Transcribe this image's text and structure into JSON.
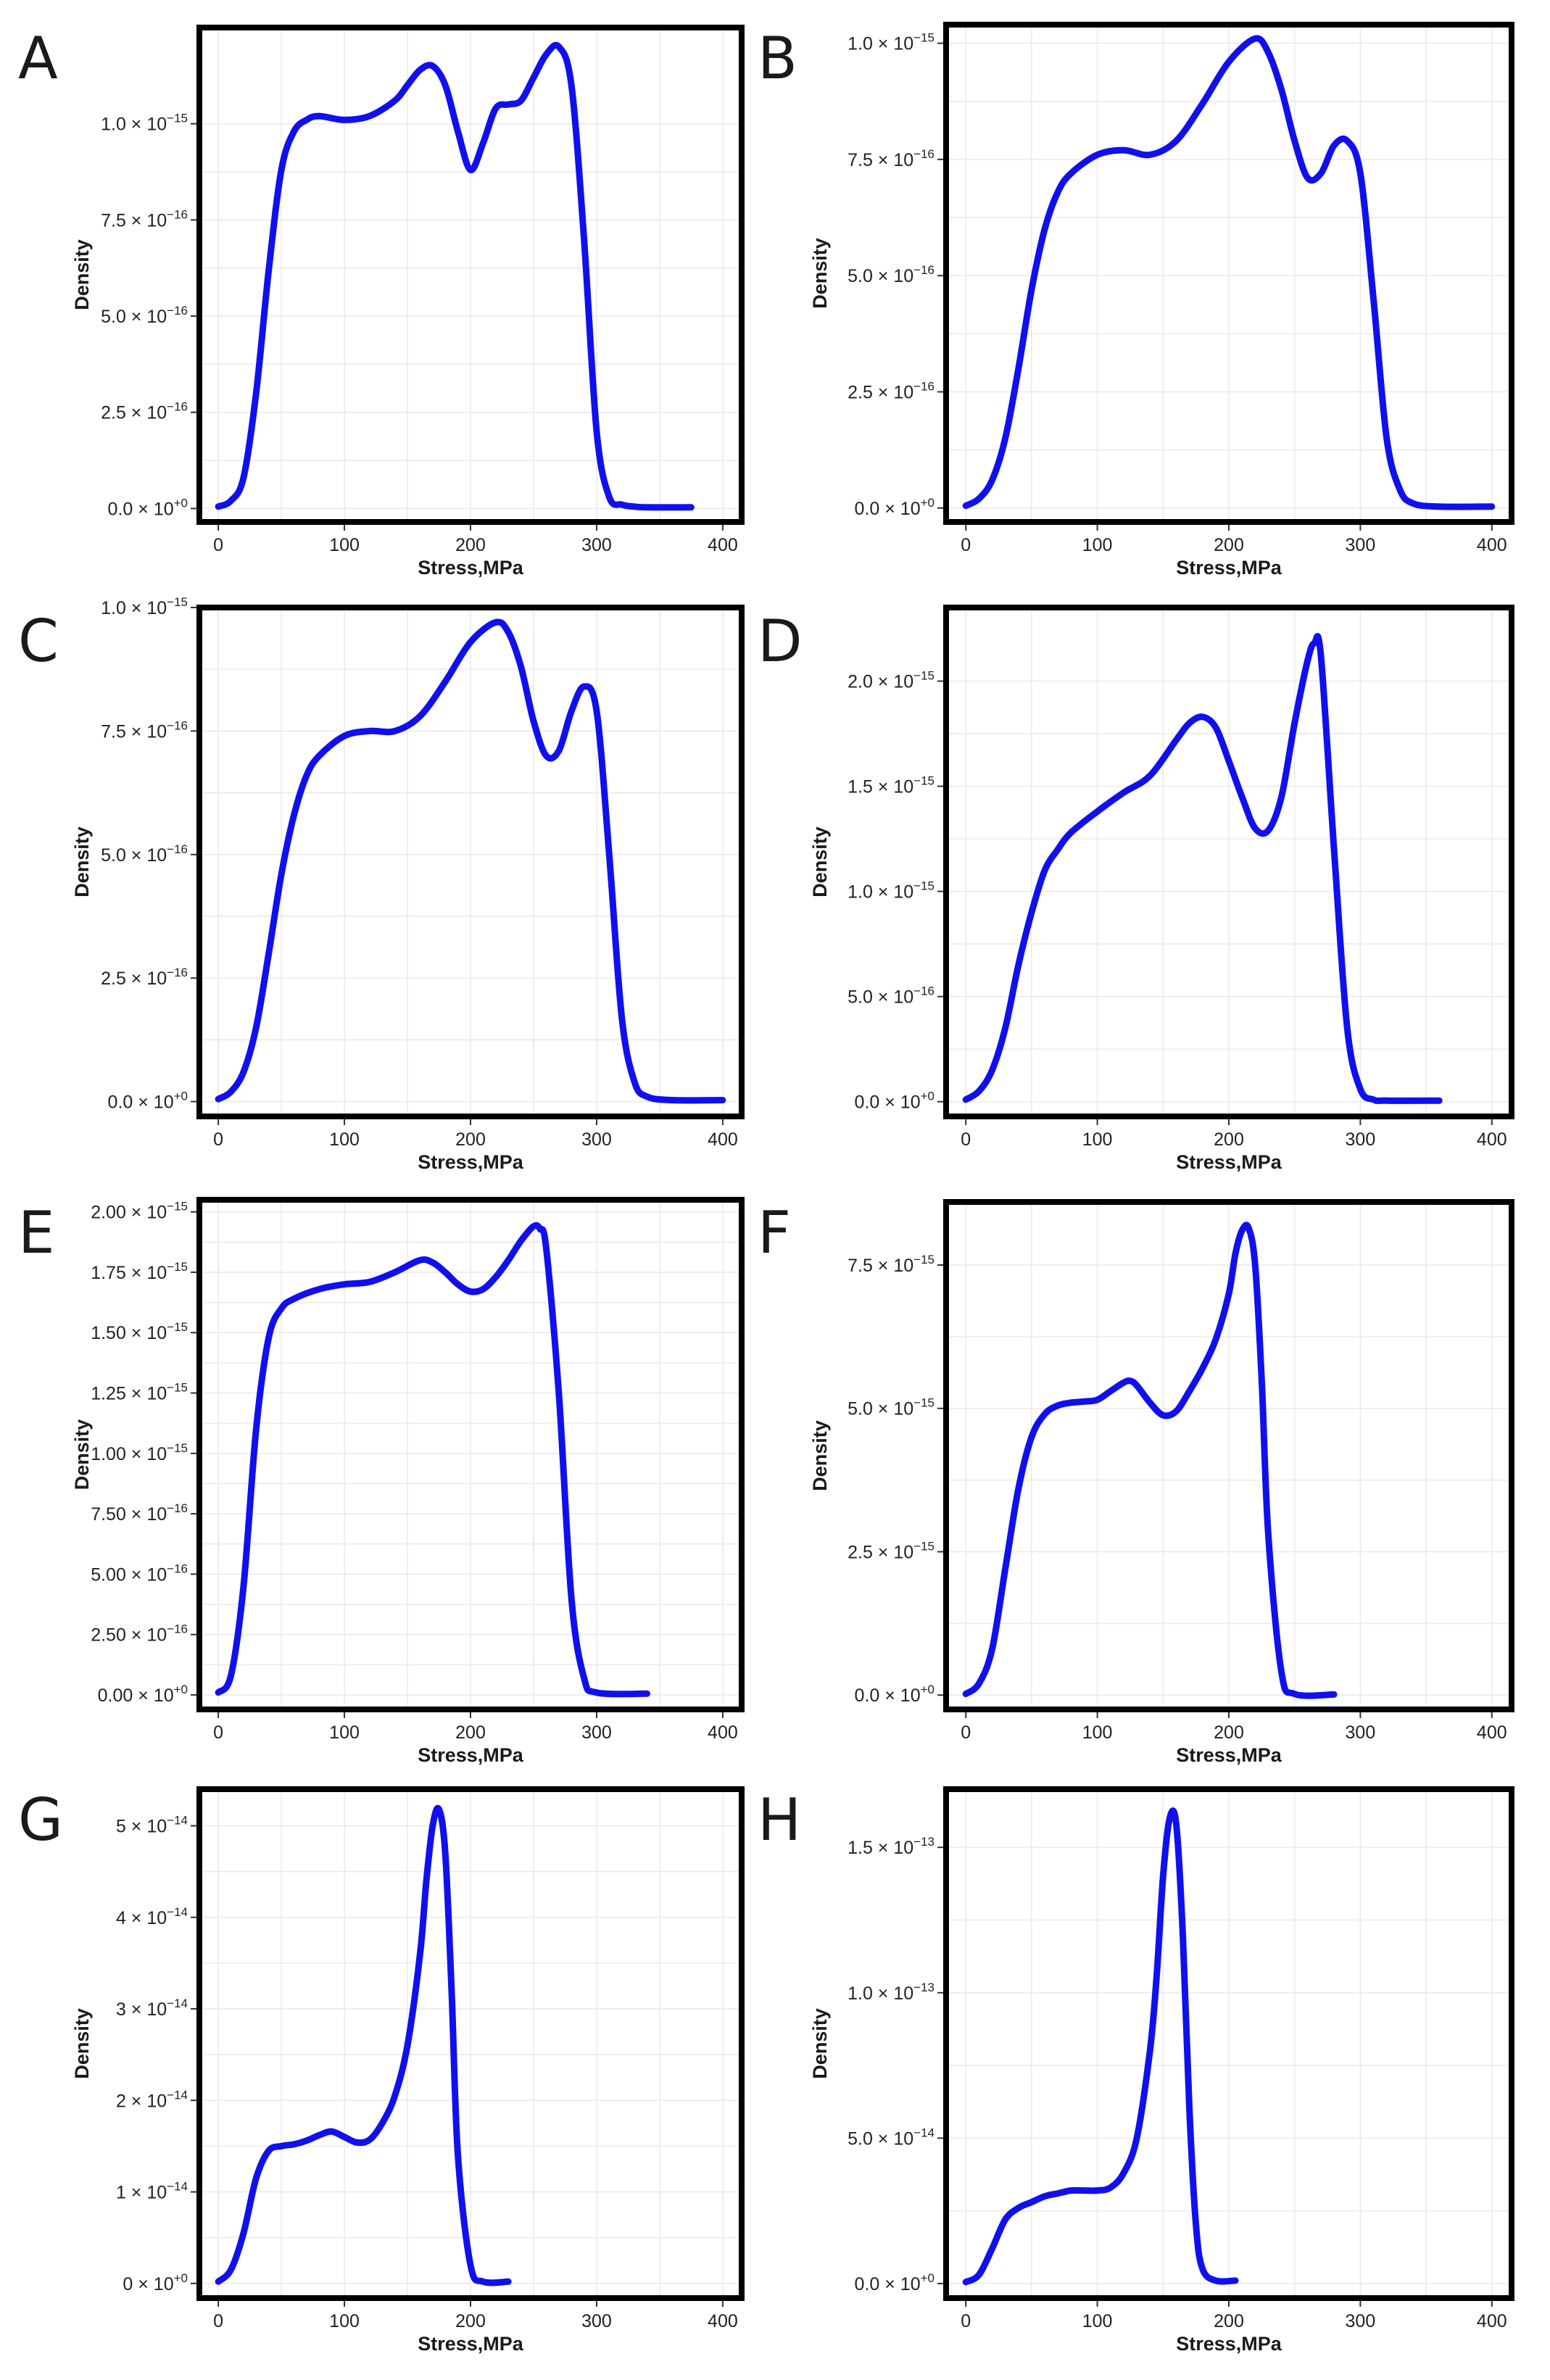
{
  "figure": {
    "line_color": "#1010ee",
    "panel_count": 8
  },
  "chart_data": [
    {
      "panel": "A",
      "type": "line",
      "xlabel": "Stress,MPa",
      "ylabel": "Density",
      "xlim": [
        -15,
        415
      ],
      "ylim": [
        -0.035,
        1.25
      ],
      "y_exp": -15,
      "xticks": [
        0,
        100,
        200,
        300,
        400
      ],
      "xtick_labels": [
        "0",
        "100",
        "200",
        "300",
        "400"
      ],
      "yticks": [
        0,
        0.25,
        0.5,
        0.75,
        1.0
      ],
      "ytick_labels": [
        {
          "mantissa": "0.0",
          "exponent": "+0"
        },
        {
          "mantissa": "2.5",
          "exponent": "−16"
        },
        {
          "mantissa": "5.0",
          "exponent": "−16"
        },
        {
          "mantissa": "7.5",
          "exponent": "−16"
        },
        {
          "mantissa": "1.0",
          "exponent": "−15"
        }
      ],
      "series": [
        {
          "name": "density",
          "x": [
            0,
            10,
            20,
            30,
            40,
            50,
            60,
            70,
            80,
            100,
            120,
            140,
            150,
            160,
            170,
            180,
            190,
            200,
            210,
            220,
            230,
            240,
            250,
            260,
            270,
            280,
            290,
            300,
            310,
            320,
            330,
            340,
            375
          ],
          "y": [
            0.005,
            0.02,
            0.08,
            0.3,
            0.62,
            0.88,
            0.98,
            1.01,
            1.02,
            1.01,
            1.02,
            1.06,
            1.1,
            1.14,
            1.15,
            1.1,
            0.98,
            0.88,
            0.95,
            1.04,
            1.05,
            1.06,
            1.12,
            1.18,
            1.2,
            1.1,
            0.7,
            0.2,
            0.03,
            0.01,
            0.005,
            0.003,
            0.003
          ]
        }
      ]
    },
    {
      "panel": "B",
      "type": "line",
      "xlabel": "Stress,MPa",
      "ylabel": "Density",
      "xlim": [
        -15,
        415
      ],
      "ylim": [
        -0.03,
        1.04
      ],
      "y_exp": -15,
      "xticks": [
        0,
        100,
        200,
        300,
        400
      ],
      "xtick_labels": [
        "0",
        "100",
        "200",
        "300",
        "400"
      ],
      "yticks": [
        0,
        0.25,
        0.5,
        0.75,
        1.0
      ],
      "ytick_labels": [
        {
          "mantissa": "0.0",
          "exponent": "+0"
        },
        {
          "mantissa": "2.5",
          "exponent": "−16"
        },
        {
          "mantissa": "5.0",
          "exponent": "−16"
        },
        {
          "mantissa": "7.5",
          "exponent": "−16"
        },
        {
          "mantissa": "1.0",
          "exponent": "−15"
        }
      ],
      "series": [
        {
          "name": "density",
          "x": [
            0,
            10,
            20,
            30,
            40,
            50,
            60,
            70,
            80,
            100,
            120,
            140,
            160,
            180,
            200,
            220,
            230,
            240,
            250,
            260,
            270,
            280,
            290,
            300,
            310,
            320,
            330,
            340,
            360,
            400
          ],
          "y": [
            0.005,
            0.02,
            0.06,
            0.15,
            0.3,
            0.47,
            0.6,
            0.68,
            0.72,
            0.76,
            0.77,
            0.76,
            0.79,
            0.87,
            0.96,
            1.01,
            0.98,
            0.9,
            0.79,
            0.71,
            0.72,
            0.78,
            0.79,
            0.72,
            0.45,
            0.15,
            0.04,
            0.01,
            0.003,
            0.003
          ]
        }
      ]
    },
    {
      "panel": "C",
      "type": "line",
      "xlabel": "Stress,MPa",
      "ylabel": "Density",
      "xlim": [
        -15,
        415
      ],
      "ylim": [
        -0.03,
        1.0
      ],
      "y_exp": -15,
      "xticks": [
        0,
        100,
        200,
        300,
        400
      ],
      "xtick_labels": [
        "0",
        "100",
        "200",
        "300",
        "400"
      ],
      "yticks": [
        0,
        0.25,
        0.5,
        0.75,
        1.0
      ],
      "ytick_labels": [
        {
          "mantissa": "0.0",
          "exponent": "+0"
        },
        {
          "mantissa": "2.5",
          "exponent": "−16"
        },
        {
          "mantissa": "5.0",
          "exponent": "−16"
        },
        {
          "mantissa": "7.5",
          "exponent": "−16"
        },
        {
          "mantissa": "1.0",
          "exponent": "−15"
        }
      ],
      "series": [
        {
          "name": "density",
          "x": [
            0,
            10,
            20,
            30,
            40,
            50,
            60,
            70,
            80,
            100,
            120,
            140,
            160,
            180,
            200,
            220,
            230,
            240,
            250,
            260,
            270,
            280,
            290,
            300,
            310,
            320,
            330,
            340,
            360,
            400
          ],
          "y": [
            0.005,
            0.02,
            0.06,
            0.15,
            0.3,
            0.46,
            0.58,
            0.66,
            0.7,
            0.74,
            0.75,
            0.75,
            0.78,
            0.85,
            0.93,
            0.97,
            0.95,
            0.88,
            0.77,
            0.7,
            0.71,
            0.79,
            0.84,
            0.79,
            0.5,
            0.17,
            0.04,
            0.01,
            0.003,
            0.003
          ]
        }
      ]
    },
    {
      "panel": "D",
      "type": "line",
      "xlabel": "Stress,MPa",
      "ylabel": "Density",
      "xlim": [
        -15,
        415
      ],
      "ylim": [
        -0.07,
        2.35
      ],
      "y_exp": -15,
      "xticks": [
        0,
        100,
        200,
        300,
        400
      ],
      "xtick_labels": [
        "0",
        "100",
        "200",
        "300",
        "400"
      ],
      "yticks": [
        0,
        0.5,
        1.0,
        1.5,
        2.0
      ],
      "ytick_labels": [
        {
          "mantissa": "0.0",
          "exponent": "+0"
        },
        {
          "mantissa": "5.0",
          "exponent": "−16"
        },
        {
          "mantissa": "1.0",
          "exponent": "−15"
        },
        {
          "mantissa": "1.5",
          "exponent": "−15"
        },
        {
          "mantissa": "2.0",
          "exponent": "−15"
        }
      ],
      "series": [
        {
          "name": "density",
          "x": [
            0,
            10,
            20,
            30,
            40,
            50,
            60,
            70,
            80,
            100,
            120,
            140,
            160,
            170,
            180,
            190,
            200,
            210,
            220,
            230,
            240,
            250,
            260,
            265,
            270,
            280,
            290,
            300,
            310,
            320,
            360
          ],
          "y": [
            0.01,
            0.05,
            0.15,
            0.35,
            0.65,
            0.9,
            1.1,
            1.2,
            1.28,
            1.38,
            1.47,
            1.55,
            1.72,
            1.8,
            1.83,
            1.78,
            1.62,
            1.45,
            1.3,
            1.29,
            1.45,
            1.8,
            2.1,
            2.18,
            2.12,
            1.2,
            0.35,
            0.06,
            0.01,
            0.005,
            0.005
          ]
        }
      ]
    },
    {
      "panel": "E",
      "type": "line",
      "xlabel": "Stress,MPa",
      "ylabel": "Density",
      "xlim": [
        -15,
        415
      ],
      "ylim": [
        -0.06,
        2.05
      ],
      "y_exp": -15,
      "xticks": [
        0,
        100,
        200,
        300,
        400
      ],
      "xtick_labels": [
        "0",
        "100",
        "200",
        "300",
        "400"
      ],
      "yticks": [
        0,
        0.25,
        0.5,
        0.75,
        1.0,
        1.25,
        1.5,
        1.75,
        2.0
      ],
      "ytick_labels": [
        {
          "mantissa": "0.00",
          "exponent": "+0"
        },
        {
          "mantissa": "2.50",
          "exponent": "−16"
        },
        {
          "mantissa": "5.00",
          "exponent": "−16"
        },
        {
          "mantissa": "7.50",
          "exponent": "−16"
        },
        {
          "mantissa": "1.00",
          "exponent": "−15"
        },
        {
          "mantissa": "1.25",
          "exponent": "−15"
        },
        {
          "mantissa": "1.50",
          "exponent": "−15"
        },
        {
          "mantissa": "1.75",
          "exponent": "−15"
        },
        {
          "mantissa": "2.00",
          "exponent": "−15"
        }
      ],
      "series": [
        {
          "name": "density",
          "x": [
            0,
            10,
            20,
            30,
            40,
            50,
            60,
            80,
            100,
            120,
            140,
            160,
            170,
            180,
            190,
            200,
            210,
            220,
            230,
            240,
            250,
            255,
            260,
            270,
            280,
            290,
            300,
            340
          ],
          "y": [
            0.01,
            0.08,
            0.45,
            1.1,
            1.48,
            1.6,
            1.64,
            1.68,
            1.7,
            1.71,
            1.75,
            1.8,
            1.79,
            1.75,
            1.7,
            1.67,
            1.68,
            1.73,
            1.8,
            1.88,
            1.94,
            1.93,
            1.85,
            1.25,
            0.4,
            0.07,
            0.01,
            0.005
          ]
        }
      ]
    },
    {
      "panel": "F",
      "type": "line",
      "xlabel": "Stress,MPa",
      "ylabel": "Density",
      "xlim": [
        -15,
        415
      ],
      "ylim": [
        -0.25,
        8.6
      ],
      "y_exp": -15,
      "xticks": [
        0,
        100,
        200,
        300,
        400
      ],
      "xtick_labels": [
        "0",
        "100",
        "200",
        "300",
        "400"
      ],
      "yticks": [
        0,
        2.5,
        5.0,
        7.5
      ],
      "ytick_labels": [
        {
          "mantissa": "0.0",
          "exponent": "+0"
        },
        {
          "mantissa": "2.5",
          "exponent": "−15"
        },
        {
          "mantissa": "5.0",
          "exponent": "−15"
        },
        {
          "mantissa": "7.5",
          "exponent": "−15"
        }
      ],
      "series": [
        {
          "name": "density",
          "x": [
            0,
            10,
            20,
            30,
            40,
            50,
            60,
            70,
            80,
            90,
            100,
            110,
            120,
            125,
            130,
            140,
            150,
            160,
            170,
            180,
            190,
            200,
            205,
            210,
            215,
            220,
            225,
            230,
            240,
            250,
            280
          ],
          "y": [
            0.02,
            0.2,
            0.8,
            2.2,
            3.6,
            4.5,
            4.9,
            5.05,
            5.1,
            5.12,
            5.15,
            5.3,
            5.45,
            5.48,
            5.4,
            5.1,
            4.88,
            4.95,
            5.3,
            5.7,
            6.2,
            7.0,
            7.7,
            8.1,
            8.15,
            7.5,
            5.5,
            2.8,
            0.4,
            0.02,
            0.01
          ]
        }
      ]
    },
    {
      "panel": "G",
      "type": "line",
      "xlabel": "Stress,MPa",
      "ylabel": "Density",
      "xlim": [
        -15,
        415
      ],
      "ylim": [
        -0.16,
        5.4
      ],
      "y_exp": -14,
      "xticks": [
        0,
        100,
        200,
        300,
        400
      ],
      "xtick_labels": [
        "0",
        "100",
        "200",
        "300",
        "400"
      ],
      "yticks": [
        0,
        1,
        2,
        3,
        4,
        5
      ],
      "ytick_labels": [
        {
          "mantissa": "0",
          "exponent": "+0"
        },
        {
          "mantissa": "1",
          "exponent": "−14"
        },
        {
          "mantissa": "2",
          "exponent": "−14"
        },
        {
          "mantissa": "3",
          "exponent": "−14"
        },
        {
          "mantissa": "4",
          "exponent": "−14"
        },
        {
          "mantissa": "5",
          "exponent": "−14"
        }
      ],
      "series": [
        {
          "name": "density",
          "x": [
            0,
            10,
            20,
            30,
            40,
            50,
            60,
            70,
            80,
            90,
            100,
            110,
            120,
            130,
            140,
            150,
            160,
            165,
            170,
            175,
            180,
            185,
            190,
            200,
            210,
            230
          ],
          "y": [
            0.02,
            0.15,
            0.55,
            1.15,
            1.45,
            1.5,
            1.52,
            1.56,
            1.62,
            1.66,
            1.6,
            1.54,
            1.57,
            1.75,
            2.05,
            2.6,
            3.6,
            4.4,
            5.0,
            5.18,
            4.7,
            3.2,
            1.4,
            0.2,
            0.02,
            0.02
          ]
        }
      ]
    },
    {
      "panel": "H",
      "type": "line",
      "xlabel": "Stress,MPa",
      "ylabel": "Density",
      "xlim": [
        -15,
        415
      ],
      "ylim": [
        -0.05,
        1.7
      ],
      "y_exp": -13,
      "xticks": [
        0,
        100,
        200,
        300,
        400
      ],
      "xtick_labels": [
        "0",
        "100",
        "200",
        "300",
        "400"
      ],
      "yticks": [
        0,
        0.5,
        1.0,
        1.5
      ],
      "ytick_labels": [
        {
          "mantissa": "0.0",
          "exponent": "+0"
        },
        {
          "mantissa": "5.0",
          "exponent": "−14"
        },
        {
          "mantissa": "1.0",
          "exponent": "−13"
        },
        {
          "mantissa": "1.5",
          "exponent": "−13"
        }
      ],
      "series": [
        {
          "name": "density",
          "x": [
            0,
            10,
            20,
            30,
            40,
            50,
            60,
            70,
            80,
            90,
            100,
            110,
            120,
            130,
            140,
            145,
            150,
            155,
            160,
            165,
            170,
            175,
            180,
            190,
            205
          ],
          "y": [
            0.005,
            0.03,
            0.12,
            0.22,
            0.26,
            0.28,
            0.3,
            0.31,
            0.32,
            0.32,
            0.32,
            0.33,
            0.38,
            0.5,
            0.8,
            1.05,
            1.4,
            1.6,
            1.58,
            1.2,
            0.6,
            0.2,
            0.05,
            0.01,
            0.01
          ]
        }
      ]
    }
  ]
}
